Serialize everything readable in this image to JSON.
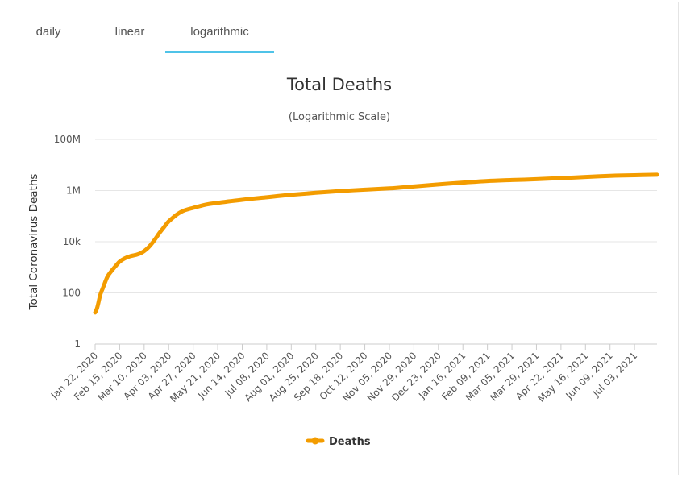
{
  "tabs": [
    {
      "label": "daily"
    },
    {
      "label": "linear"
    },
    {
      "label": "logarithmic",
      "active": true
    }
  ],
  "chart_data": {
    "type": "line",
    "title": "Total Deaths",
    "subtitle": "(Logarithmic Scale)",
    "ylabel": "Total Coronavirus Deaths",
    "xlabel": "",
    "y_scale": "log",
    "ylim": [
      1,
      100000000
    ],
    "y_ticks": [
      1,
      100,
      10000,
      1000000,
      100000000
    ],
    "y_tick_labels": [
      "1",
      "100",
      "10k",
      "1M",
      "100M"
    ],
    "x_range": [
      "2020-01-22",
      "2021-07-25"
    ],
    "x_tick_labels": [
      "Jan 22, 2020",
      "Feb 15, 2020",
      "Mar 10, 2020",
      "Apr 03, 2020",
      "Apr 27, 2020",
      "May 21, 2020",
      "Jun 14, 2020",
      "Jul 08, 2020",
      "Aug 01, 2020",
      "Aug 25, 2020",
      "Sep 18, 2020",
      "Oct 12, 2020",
      "Nov 05, 2020",
      "Nov 29, 2020",
      "Dec 23, 2020",
      "Jan 16, 2021",
      "Feb 09, 2021",
      "Mar 05, 2021",
      "Mar 29, 2021",
      "Apr 22, 2021",
      "May 16, 2021",
      "Jun 09, 2021",
      "Jul 03, 2021"
    ],
    "grid": true,
    "legend": "bottom-center",
    "series": [
      {
        "name": "Deaths",
        "color": "#f39c00",
        "points": [
          [
            "2020-01-22",
            17
          ],
          [
            "2020-01-24",
            26
          ],
          [
            "2020-01-27",
            82
          ],
          [
            "2020-01-30",
            170
          ],
          [
            "2020-02-03",
            425
          ],
          [
            "2020-02-07",
            720
          ],
          [
            "2020-02-11",
            1110
          ],
          [
            "2020-02-15",
            1665
          ],
          [
            "2020-02-20",
            2250
          ],
          [
            "2020-02-25",
            2700
          ],
          [
            "2020-03-01",
            3000
          ],
          [
            "2020-03-05",
            3350
          ],
          [
            "2020-03-10",
            4300
          ],
          [
            "2020-03-15",
            6500
          ],
          [
            "2020-03-20",
            11500
          ],
          [
            "2020-03-25",
            22000
          ],
          [
            "2020-03-30",
            40000
          ],
          [
            "2020-04-03",
            62000
          ],
          [
            "2020-04-10",
            108000
          ],
          [
            "2020-04-17",
            160000
          ],
          [
            "2020-04-27",
            210000
          ],
          [
            "2020-05-10",
            285000
          ],
          [
            "2020-05-21",
            330000
          ],
          [
            "2020-06-14",
            435000
          ],
          [
            "2020-07-08",
            545000
          ],
          [
            "2020-08-01",
            680000
          ],
          [
            "2020-08-25",
            815000
          ],
          [
            "2020-09-18",
            955000
          ],
          [
            "2020-10-12",
            1085000
          ],
          [
            "2020-11-05",
            1220000
          ],
          [
            "2020-11-29",
            1450000
          ],
          [
            "2020-12-23",
            1730000
          ],
          [
            "2021-01-16",
            2050000
          ],
          [
            "2021-02-09",
            2370000
          ],
          [
            "2021-03-05",
            2580000
          ],
          [
            "2021-03-29",
            2780000
          ],
          [
            "2021-04-22",
            3070000
          ],
          [
            "2021-05-16",
            3400000
          ],
          [
            "2021-06-09",
            3760000
          ],
          [
            "2021-07-03",
            3960000
          ],
          [
            "2021-07-25",
            4150000
          ]
        ]
      }
    ]
  }
}
